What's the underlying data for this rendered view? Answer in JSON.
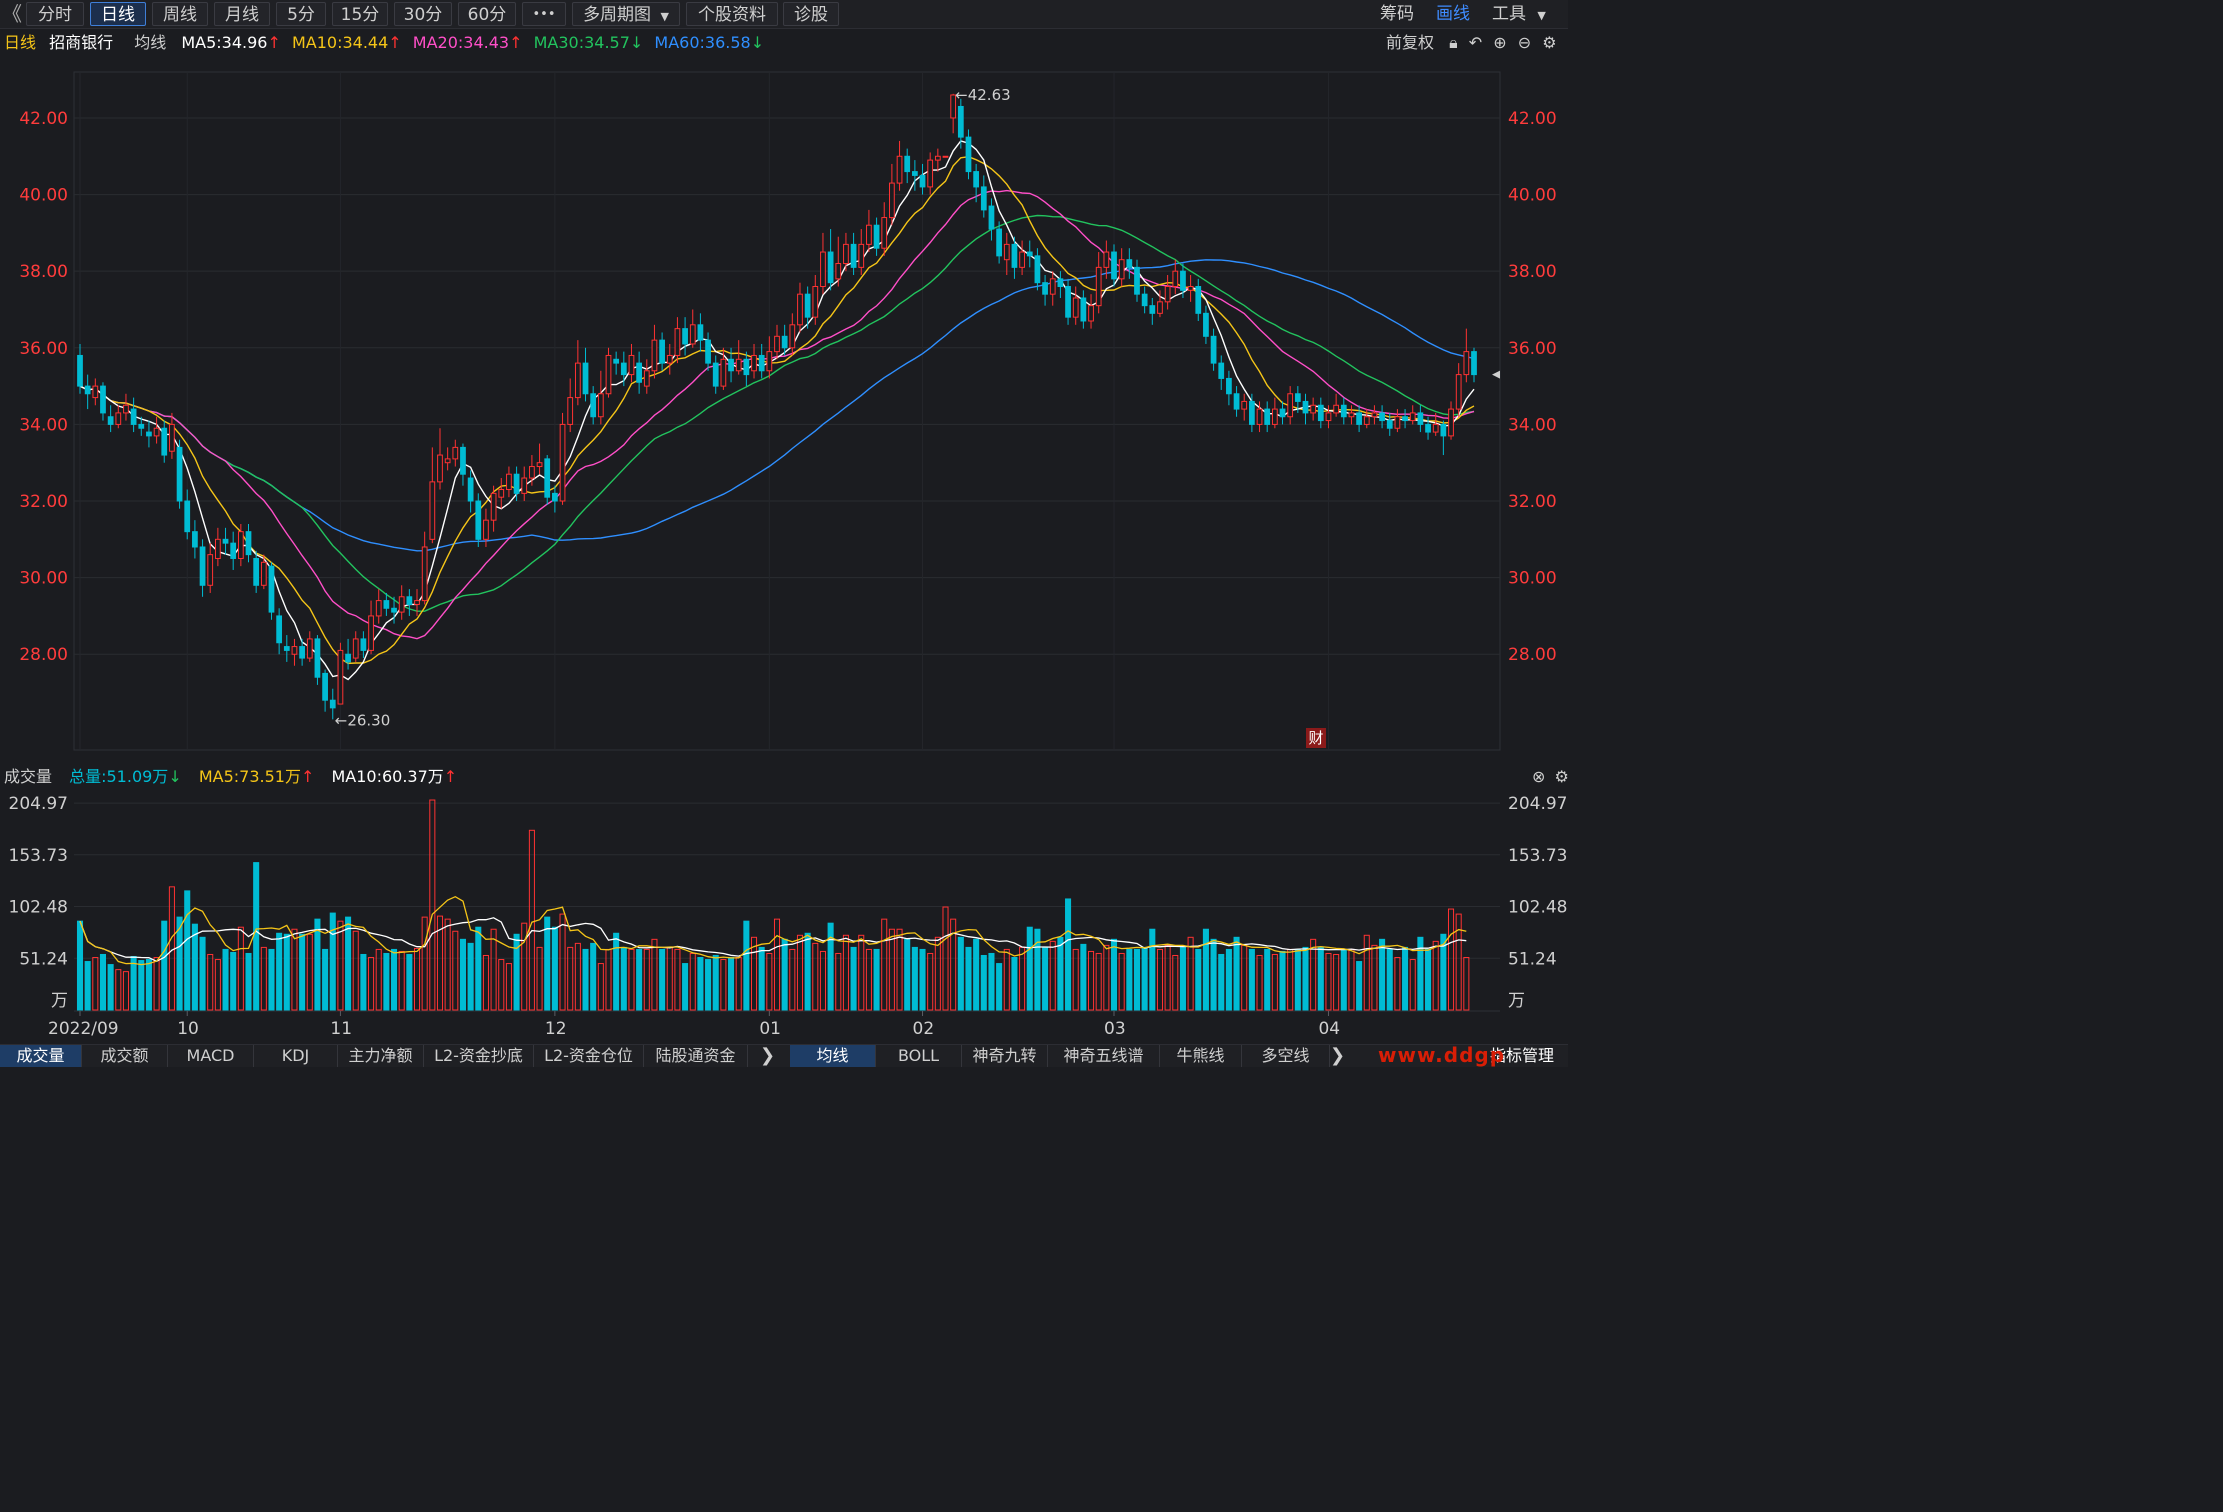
{
  "toolbar": {
    "back_icon": "chevron-left-icon",
    "periods": [
      {
        "label": "分时",
        "active": false
      },
      {
        "label": "日线",
        "active": true
      },
      {
        "label": "周线",
        "active": false
      },
      {
        "label": "月线",
        "active": false
      },
      {
        "label": "5分",
        "active": false
      },
      {
        "label": "15分",
        "active": false
      },
      {
        "label": "30分",
        "active": false
      },
      {
        "label": "60分",
        "active": false
      }
    ],
    "more_label": "•••",
    "multi_period_label": "多周期图",
    "stock_info_label": "个股资料",
    "diagnose_label": "诊股",
    "chips_label": "筹码",
    "draw_label": "画线",
    "tools_label": "工具"
  },
  "header": {
    "period": "日线",
    "stock_name": "招商银行",
    "ma_label": "均线",
    "ma5": "MA5:34.96",
    "ma10": "MA10:34.44",
    "ma20": "MA20:34.43",
    "ma30": "MA30:34.57",
    "ma60": "MA60:36.58",
    "adjust_label": "前复权"
  },
  "colors": {
    "up": "#ff3232",
    "down": "#00bcd4",
    "ma5": "#ffffff",
    "ma10": "#f5c518",
    "ma20": "#ff4fc8",
    "ma30": "#22c35e",
    "ma60": "#2f8fff",
    "price_axis": "#ff3c3c"
  },
  "volume_header": {
    "label": "成交量",
    "total": "总量:51.09万",
    "ma5": "MA5:73.51万",
    "ma10": "MA10:60.37万"
  },
  "annotations": {
    "high": "←42.63",
    "low": "←26.30",
    "finance_badge": "财"
  },
  "bottom_tabs": {
    "left": [
      {
        "label": "成交量",
        "active": true
      },
      {
        "label": "成交额",
        "active": false
      },
      {
        "label": "MACD",
        "active": false
      },
      {
        "label": "KDJ",
        "active": false
      },
      {
        "label": "主力净额",
        "active": false
      },
      {
        "label": "L2-资金抄底",
        "active": false
      },
      {
        "label": "L2-资金仓位",
        "active": false
      },
      {
        "label": "陆股通资金",
        "active": false
      }
    ],
    "right": [
      {
        "label": "均线",
        "active": true
      },
      {
        "label": "BOLL",
        "active": false
      },
      {
        "label": "神奇九转",
        "active": false
      },
      {
        "label": "神奇五线谱",
        "active": false
      },
      {
        "label": "牛熊线",
        "active": false
      },
      {
        "label": "多空线",
        "active": false
      }
    ],
    "index_manage_label": "指标管理",
    "watermark": "www.ddgp"
  },
  "chart_data": {
    "type": "candlestick",
    "price_axis": {
      "ticks": [
        "42.00",
        "40.00",
        "38.00",
        "36.00",
        "34.00",
        "32.00",
        "30.00",
        "28.00"
      ],
      "ylim": [
        25.5,
        43.2
      ]
    },
    "volume_axis": {
      "ticks": [
        "204.97",
        "153.73",
        "102.48",
        "51.24"
      ],
      "unit": "万",
      "ylim": [
        0,
        210
      ]
    },
    "x_labels": [
      "2022/09",
      "10",
      "11",
      "12",
      "01",
      "02",
      "03",
      "04"
    ],
    "x_label_index": [
      0,
      14,
      34,
      62,
      90,
      110,
      135,
      163
    ],
    "high_value": 42.63,
    "low_value": 26.3,
    "candles": [
      [
        35.8,
        35.0,
        36.1,
        34.8
      ],
      [
        35.0,
        34.8,
        35.3,
        34.4
      ],
      [
        34.7,
        35.0,
        35.2,
        34.5
      ],
      [
        35.0,
        34.3,
        35.1,
        34.1
      ],
      [
        34.2,
        34.0,
        34.5,
        33.8
      ],
      [
        34.0,
        34.3,
        34.5,
        33.9
      ],
      [
        34.3,
        34.5,
        34.8,
        34.1
      ],
      [
        34.4,
        34.0,
        34.7,
        33.8
      ],
      [
        34.0,
        33.9,
        34.2,
        33.7
      ],
      [
        33.8,
        33.7,
        34.1,
        33.4
      ],
      [
        33.7,
        33.9,
        34.2,
        33.5
      ],
      [
        33.9,
        33.2,
        34.1,
        33.0
      ],
      [
        33.3,
        34.0,
        34.3,
        33.1
      ],
      [
        33.4,
        32.0,
        33.6,
        31.8
      ],
      [
        32.0,
        31.2,
        32.3,
        31.0
      ],
      [
        31.2,
        30.8,
        31.5,
        30.5
      ],
      [
        30.8,
        29.8,
        31.0,
        29.5
      ],
      [
        29.8,
        30.6,
        30.9,
        29.6
      ],
      [
        30.5,
        31.0,
        31.3,
        30.3
      ],
      [
        31.0,
        30.9,
        31.3,
        30.6
      ],
      [
        30.9,
        30.5,
        31.2,
        30.2
      ],
      [
        30.5,
        31.2,
        31.4,
        30.3
      ],
      [
        31.2,
        30.6,
        31.4,
        30.4
      ],
      [
        30.5,
        29.8,
        30.7,
        29.6
      ],
      [
        29.8,
        30.4,
        30.6,
        29.7
      ],
      [
        30.3,
        29.1,
        30.4,
        28.9
      ],
      [
        29.0,
        28.3,
        29.2,
        28.0
      ],
      [
        28.2,
        28.1,
        28.5,
        27.8
      ],
      [
        28.0,
        28.2,
        28.4,
        27.7
      ],
      [
        28.2,
        27.9,
        28.4,
        27.7
      ],
      [
        27.9,
        28.4,
        28.6,
        27.8
      ],
      [
        28.4,
        27.4,
        28.5,
        27.2
      ],
      [
        27.5,
        26.8,
        27.6,
        26.5
      ],
      [
        26.8,
        26.6,
        27.1,
        26.3
      ],
      [
        26.7,
        28.1,
        28.3,
        26.7
      ],
      [
        28.0,
        27.8,
        28.4,
        27.6
      ],
      [
        27.9,
        28.4,
        28.6,
        27.8
      ],
      [
        28.4,
        28.1,
        28.6,
        27.9
      ],
      [
        28.1,
        29.0,
        29.4,
        28.0
      ],
      [
        29.0,
        29.4,
        29.7,
        28.8
      ],
      [
        29.4,
        29.2,
        29.6,
        29.0
      ],
      [
        29.2,
        29.1,
        29.5,
        28.8
      ],
      [
        29.1,
        29.5,
        29.8,
        28.9
      ],
      [
        29.5,
        29.3,
        29.7,
        29.0
      ],
      [
        29.3,
        29.4,
        29.7,
        29.0
      ],
      [
        29.4,
        30.8,
        31.2,
        29.3
      ],
      [
        31.0,
        32.5,
        33.4,
        30.9
      ],
      [
        32.5,
        33.2,
        33.9,
        32.3
      ],
      [
        33.0,
        33.1,
        33.4,
        32.8
      ],
      [
        33.1,
        33.4,
        33.6,
        32.9
      ],
      [
        33.4,
        32.7,
        33.5,
        32.4
      ],
      [
        32.6,
        32.0,
        32.8,
        31.7
      ],
      [
        32.0,
        31.0,
        32.2,
        30.8
      ],
      [
        31.0,
        31.5,
        31.8,
        30.8
      ],
      [
        31.5,
        32.2,
        32.4,
        31.2
      ],
      [
        32.1,
        32.3,
        32.6,
        31.8
      ],
      [
        32.3,
        32.7,
        32.9,
        32.1
      ],
      [
        32.7,
        32.2,
        32.9,
        32.0
      ],
      [
        32.2,
        32.6,
        32.9,
        32.0
      ],
      [
        32.6,
        32.9,
        33.2,
        32.4
      ],
      [
        32.9,
        33.0,
        33.5,
        32.7
      ],
      [
        33.1,
        32.1,
        33.2,
        31.9
      ],
      [
        32.2,
        32.0,
        32.4,
        31.7
      ],
      [
        32.0,
        34.0,
        34.3,
        31.9
      ],
      [
        34.0,
        34.7,
        35.2,
        33.8
      ],
      [
        34.7,
        35.6,
        36.2,
        34.5
      ],
      [
        35.6,
        34.8,
        36.0,
        34.6
      ],
      [
        34.8,
        34.2,
        35.0,
        34.0
      ],
      [
        34.2,
        34.8,
        35.4,
        34.0
      ],
      [
        34.8,
        35.8,
        36.0,
        34.7
      ],
      [
        35.7,
        35.6,
        35.9,
        35.3
      ],
      [
        35.6,
        35.3,
        35.9,
        35.0
      ],
      [
        35.3,
        35.8,
        36.1,
        35.1
      ],
      [
        35.6,
        35.1,
        35.9,
        34.8
      ],
      [
        35.0,
        35.4,
        35.7,
        34.8
      ],
      [
        35.4,
        36.2,
        36.6,
        35.2
      ],
      [
        36.2,
        35.6,
        36.4,
        35.4
      ],
      [
        35.6,
        35.8,
        36.1,
        35.3
      ],
      [
        35.8,
        36.5,
        36.8,
        35.6
      ],
      [
        36.5,
        36.1,
        36.8,
        35.8
      ],
      [
        36.1,
        36.6,
        37.0,
        36.0
      ],
      [
        36.6,
        36.2,
        36.9,
        35.9
      ],
      [
        36.2,
        35.6,
        36.4,
        35.4
      ],
      [
        35.6,
        35.0,
        35.8,
        34.8
      ],
      [
        35.0,
        35.7,
        36.0,
        34.9
      ],
      [
        35.7,
        35.4,
        36.0,
        35.1
      ],
      [
        35.4,
        35.7,
        36.2,
        35.3
      ],
      [
        35.7,
        35.3,
        35.9,
        35.0
      ],
      [
        35.4,
        35.8,
        36.1,
        35.2
      ],
      [
        35.8,
        35.4,
        36.1,
        35.2
      ],
      [
        35.4,
        35.9,
        36.3,
        35.2
      ],
      [
        35.9,
        36.3,
        36.6,
        35.7
      ],
      [
        36.3,
        36.0,
        36.6,
        35.8
      ],
      [
        36.0,
        36.6,
        36.9,
        35.8
      ],
      [
        36.6,
        37.4,
        37.7,
        36.4
      ],
      [
        37.4,
        36.8,
        37.6,
        36.5
      ],
      [
        36.8,
        37.6,
        37.9,
        36.6
      ],
      [
        37.6,
        38.5,
        39.0,
        37.4
      ],
      [
        38.5,
        37.7,
        39.1,
        37.5
      ],
      [
        37.8,
        38.2,
        38.9,
        37.6
      ],
      [
        38.2,
        38.7,
        39.0,
        38.0
      ],
      [
        38.7,
        38.1,
        39.0,
        37.9
      ],
      [
        38.1,
        38.7,
        39.1,
        37.9
      ],
      [
        38.7,
        39.2,
        39.6,
        38.5
      ],
      [
        39.2,
        38.6,
        39.4,
        38.4
      ],
      [
        38.6,
        39.4,
        39.8,
        38.4
      ],
      [
        39.4,
        40.3,
        40.8,
        39.2
      ],
      [
        40.3,
        41.0,
        41.4,
        40.1
      ],
      [
        41.0,
        40.6,
        41.2,
        40.3
      ],
      [
        40.6,
        40.5,
        40.9,
        40.1
      ],
      [
        40.5,
        40.2,
        40.8,
        40.0
      ],
      [
        40.2,
        40.9,
        41.1,
        40.0
      ],
      [
        40.9,
        41.0,
        41.2,
        40.6
      ],
      [
        41.0,
        41.0,
        41.0,
        41.0
      ],
      [
        42.0,
        42.6,
        42.63,
        41.6
      ],
      [
        42.3,
        41.5,
        42.5,
        41.2
      ],
      [
        41.5,
        40.6,
        41.7,
        40.4
      ],
      [
        40.6,
        40.2,
        40.8,
        39.8
      ],
      [
        40.2,
        39.6,
        40.5,
        39.4
      ],
      [
        39.7,
        39.1,
        39.9,
        38.8
      ],
      [
        39.1,
        38.4,
        39.3,
        38.2
      ],
      [
        38.3,
        38.7,
        39.0,
        37.9
      ],
      [
        38.7,
        38.1,
        38.9,
        37.8
      ],
      [
        38.1,
        38.5,
        38.8,
        37.9
      ],
      [
        38.5,
        38.4,
        38.8,
        38.1
      ],
      [
        38.4,
        37.7,
        38.6,
        37.5
      ],
      [
        37.7,
        37.4,
        37.9,
        37.1
      ],
      [
        37.4,
        37.8,
        38.0,
        37.1
      ],
      [
        37.8,
        37.6,
        38.0,
        37.3
      ],
      [
        37.6,
        36.8,
        37.8,
        36.6
      ],
      [
        36.8,
        37.3,
        37.6,
        36.6
      ],
      [
        37.3,
        36.7,
        37.5,
        36.5
      ],
      [
        36.7,
        37.1,
        37.4,
        36.5
      ],
      [
        37.1,
        38.1,
        38.5,
        36.9
      ],
      [
        38.1,
        38.5,
        38.8,
        37.8
      ],
      [
        38.5,
        37.8,
        38.7,
        37.6
      ],
      [
        37.8,
        38.3,
        38.6,
        37.6
      ],
      [
        38.3,
        38.1,
        38.6,
        37.8
      ],
      [
        38.1,
        37.4,
        38.3,
        37.2
      ],
      [
        37.4,
        37.1,
        37.6,
        36.9
      ],
      [
        37.1,
        36.9,
        37.3,
        36.6
      ],
      [
        36.9,
        37.2,
        37.5,
        36.8
      ],
      [
        37.2,
        37.6,
        37.9,
        37.0
      ],
      [
        37.6,
        38.0,
        38.3,
        37.4
      ],
      [
        38.0,
        37.5,
        38.2,
        37.3
      ],
      [
        37.5,
        37.6,
        37.9,
        37.2
      ],
      [
        37.6,
        36.9,
        37.8,
        36.7
      ],
      [
        36.9,
        36.3,
        37.1,
        36.1
      ],
      [
        36.3,
        35.6,
        36.5,
        35.4
      ],
      [
        35.6,
        35.2,
        35.8,
        34.9
      ],
      [
        35.2,
        34.8,
        35.4,
        34.5
      ],
      [
        34.8,
        34.4,
        35.0,
        34.2
      ],
      [
        34.4,
        34.6,
        34.8,
        34.1
      ],
      [
        34.6,
        34.0,
        34.8,
        33.8
      ],
      [
        34.0,
        34.4,
        34.6,
        33.8
      ],
      [
        34.4,
        34.0,
        34.6,
        33.8
      ],
      [
        34.0,
        34.4,
        34.7,
        33.9
      ],
      [
        34.4,
        34.2,
        34.6,
        34.0
      ],
      [
        34.2,
        34.8,
        35.0,
        34.0
      ],
      [
        34.8,
        34.6,
        35.0,
        34.3
      ],
      [
        34.6,
        34.3,
        34.8,
        34.0
      ],
      [
        34.3,
        34.5,
        34.7,
        34.1
      ],
      [
        34.5,
        34.1,
        34.7,
        33.9
      ],
      [
        34.1,
        34.3,
        34.5,
        33.9
      ],
      [
        34.3,
        34.5,
        34.8,
        34.2
      ],
      [
        34.5,
        34.2,
        34.7,
        34.0
      ],
      [
        34.2,
        34.3,
        34.5,
        34.0
      ],
      [
        34.3,
        34.0,
        34.5,
        33.8
      ],
      [
        34.0,
        34.2,
        34.4,
        33.9
      ],
      [
        34.2,
        34.3,
        34.5,
        34.0
      ],
      [
        34.3,
        34.1,
        34.5,
        33.9
      ],
      [
        34.1,
        33.9,
        34.3,
        33.7
      ],
      [
        33.9,
        34.2,
        34.4,
        33.8
      ],
      [
        34.2,
        34.1,
        34.4,
        33.9
      ],
      [
        34.1,
        34.3,
        34.5,
        34.0
      ],
      [
        34.3,
        34.0,
        34.5,
        33.8
      ],
      [
        34.0,
        33.8,
        34.2,
        33.6
      ],
      [
        33.8,
        34.0,
        34.3,
        33.7
      ],
      [
        34.0,
        33.7,
        34.1,
        33.2
      ],
      [
        33.7,
        34.4,
        34.6,
        33.6
      ],
      [
        34.4,
        35.3,
        35.6,
        34.2
      ],
      [
        35.3,
        35.9,
        36.5,
        35.1
      ],
      [
        35.9,
        35.3,
        36.0,
        35.1
      ]
    ],
    "volumes": [
      88,
      48,
      52,
      55,
      45,
      40,
      38,
      53,
      49,
      50,
      52,
      88,
      122,
      92,
      118,
      85,
      72,
      55,
      50,
      60,
      57,
      82,
      56,
      146,
      62,
      60,
      76,
      75,
      80,
      75,
      75,
      90,
      60,
      96,
      88,
      92,
      78,
      55,
      52,
      60,
      56,
      60,
      58,
      55,
      61,
      92,
      208,
      93,
      90,
      78,
      70,
      66,
      82,
      54,
      80,
      50,
      46,
      75,
      86,
      178,
      62,
      92,
      82,
      95,
      62,
      66,
      60,
      66,
      46,
      60,
      76,
      62,
      60,
      60,
      60,
      70,
      60,
      62,
      60,
      46,
      56,
      52,
      50,
      54,
      50,
      52,
      52,
      88,
      72,
      62,
      56,
      90,
      70,
      60,
      74,
      76,
      66,
      58,
      86,
      56,
      74,
      62,
      74,
      60,
      60,
      90,
      80,
      80,
      70,
      62,
      60,
      56,
      72,
      102,
      90,
      72,
      62,
      70,
      54,
      56,
      46,
      60,
      52,
      62,
      82,
      80,
      62,
      68,
      72,
      110,
      60,
      65,
      58,
      56,
      64,
      70,
      56,
      60,
      60,
      62,
      80,
      60,
      64,
      54,
      62,
      72,
      60,
      80,
      70,
      55,
      60,
      72,
      64,
      60,
      54,
      60,
      55,
      58,
      60,
      60,
      62,
      70,
      62,
      56,
      55,
      60,
      60,
      48,
      74,
      64,
      70,
      60,
      52,
      62,
      50,
      72,
      60,
      68,
      75,
      100,
      95,
      52
    ]
  }
}
